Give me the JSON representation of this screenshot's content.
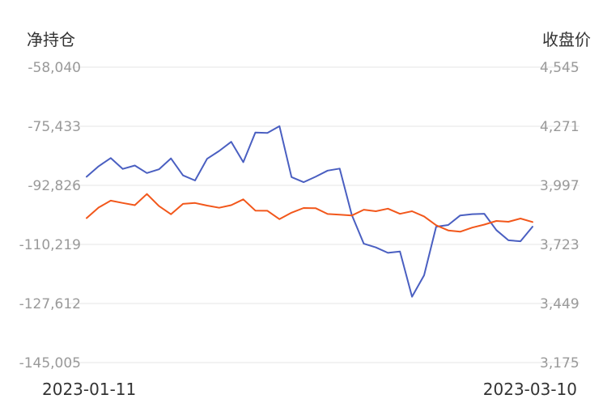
{
  "chart_data": {
    "type": "line",
    "ylabel_left": "净持仓",
    "ylabel_right": "收盘价",
    "x_start_label": "2023-01-11",
    "x_end_label": "2023-03-10",
    "left_axis": {
      "ticks": [
        "-58,040",
        "-75,433",
        "-92,826",
        "-110,219",
        "-127,612",
        "-145,005"
      ],
      "range": [
        -145005,
        -58040
      ]
    },
    "right_axis": {
      "ticks": [
        "4,545",
        "4,271",
        "3,997",
        "3,723",
        "3,449",
        "3,175"
      ],
      "range": [
        3175,
        4545
      ]
    },
    "grid": true,
    "legend": "none",
    "series": [
      {
        "axis": "left",
        "color": "#4a5fc1",
        "values": [
          -90300,
          -87200,
          -84800,
          -88000,
          -87000,
          -89200,
          -88100,
          -84900,
          -89900,
          -91400,
          -85000,
          -82700,
          -80000,
          -86000,
          -77300,
          -77400,
          -75400,
          -90400,
          -91900,
          -90300,
          -88500,
          -87900,
          -101500,
          -110000,
          -111100,
          -112700,
          -112300,
          -125600,
          -119300,
          -105000,
          -104500,
          -101700,
          -101300,
          -101200,
          -106000,
          -109000,
          -109300,
          -105000
        ]
      },
      {
        "axis": "right",
        "color": "#f2571b",
        "values": [
          3845,
          3894,
          3926,
          3915,
          3905,
          3957,
          3901,
          3863,
          3911,
          3915,
          3903,
          3893,
          3905,
          3932,
          3880,
          3879,
          3840,
          3870,
          3892,
          3891,
          3864,
          3861,
          3857,
          3884,
          3877,
          3889,
          3865,
          3877,
          3853,
          3812,
          3788,
          3782,
          3801,
          3815,
          3832,
          3828,
          3843,
          3827
        ]
      }
    ]
  }
}
